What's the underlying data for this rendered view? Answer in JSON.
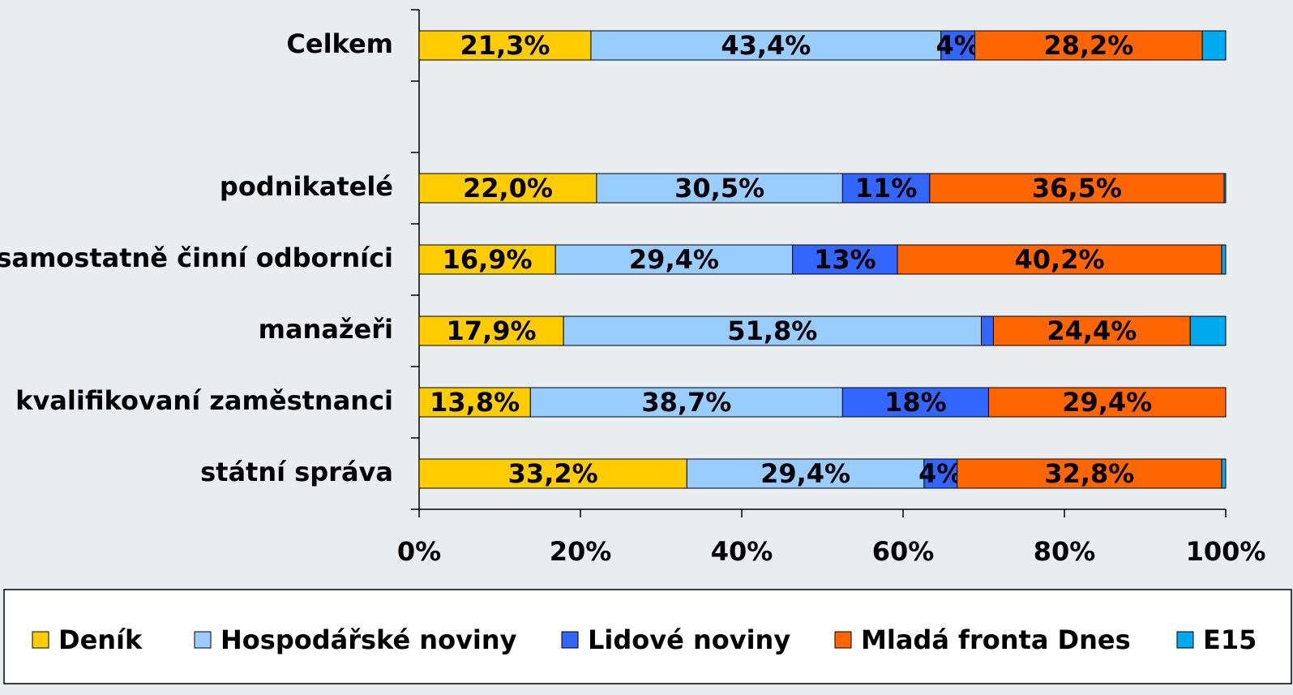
{
  "chart_data": {
    "type": "stacked_bar_horizontal",
    "categories": [
      "Celkem",
      null,
      "podnikatelé",
      "samostatně činní odborníci",
      "manažeři",
      "kvalifikovaní zaměstnanci",
      "státní správa"
    ],
    "series": [
      {
        "name": "Deník",
        "color": "#ffcc00",
        "values": [
          21.3,
          null,
          22.0,
          16.9,
          17.9,
          13.8,
          33.2
        ],
        "value_labels": [
          "21,3%",
          null,
          "22,0%",
          "16,9%",
          "17,9%",
          "13,8%",
          "33,2%"
        ]
      },
      {
        "name": "Hospodářské noviny",
        "color": "#99ccff",
        "values": [
          43.4,
          null,
          30.5,
          29.4,
          51.8,
          38.7,
          29.4
        ],
        "value_labels": [
          "43,4%",
          null,
          "30,5%",
          "29,4%",
          "51,8%",
          "38,7%",
          "29,4%"
        ]
      },
      {
        "name": "Lidové noviny",
        "color": "#3366ff",
        "values": [
          4.2,
          null,
          10.8,
          13.0,
          1.5,
          18.1,
          4.1
        ],
        "value_labels": [
          "4%",
          null,
          "11%",
          "13%",
          null,
          "18%",
          "4%"
        ]
      },
      {
        "name": "Mladá fronta Dnes",
        "color": "#ff6600",
        "values": [
          28.2,
          null,
          36.5,
          40.2,
          24.4,
          29.4,
          32.8
        ],
        "value_labels": [
          "28,2%",
          null,
          "36,5%",
          "40,2%",
          "24,4%",
          "29,4%",
          "32,8%"
        ]
      },
      {
        "name": "E15",
        "color": "#00aaee",
        "values": [
          2.9,
          null,
          0.2,
          0.5,
          4.4,
          0,
          0.5
        ],
        "value_labels": [
          null,
          null,
          null,
          null,
          null,
          null,
          null
        ]
      }
    ],
    "xlim": [
      0,
      100
    ],
    "xticks": [
      {
        "value": 0,
        "label": "0%"
      },
      {
        "value": 20,
        "label": "20%"
      },
      {
        "value": 40,
        "label": "40%"
      },
      {
        "value": 60,
        "label": "60%"
      },
      {
        "value": 80,
        "label": "80%"
      },
      {
        "value": 100,
        "label": "100%"
      }
    ],
    "legend": "bottom"
  }
}
